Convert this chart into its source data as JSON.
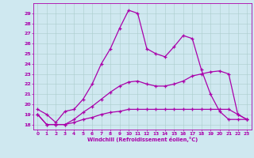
{
  "xlabel": "Windchill (Refroidissement éolien,°C)",
  "background_color": "#cfe8f0",
  "grid_color": "#aacccc",
  "line_color": "#aa00aa",
  "xlim": [
    -0.5,
    23.5
  ],
  "ylim": [
    17.5,
    30.0
  ],
  "yticks": [
    18,
    19,
    20,
    21,
    22,
    23,
    24,
    25,
    26,
    27,
    28,
    29
  ],
  "xticks": [
    0,
    1,
    2,
    3,
    4,
    5,
    6,
    7,
    8,
    9,
    10,
    11,
    12,
    13,
    14,
    15,
    16,
    17,
    18,
    19,
    20,
    21,
    22,
    23
  ],
  "series": [
    {
      "x": [
        0,
        1,
        2,
        3,
        4,
        5,
        6,
        7,
        8,
        9,
        10,
        11,
        12,
        13,
        14,
        15,
        16,
        17,
        18,
        19,
        20,
        21,
        22,
        23
      ],
      "y": [
        19.5,
        19.0,
        18.2,
        19.3,
        19.5,
        20.5,
        22.0,
        24.0,
        25.5,
        27.5,
        29.3,
        29.0,
        25.5,
        25.0,
        24.7,
        25.7,
        26.8,
        26.5,
        23.4,
        21.0,
        19.3,
        18.5,
        18.5,
        18.5
      ]
    },
    {
      "x": [
        0,
        1,
        2,
        3,
        4,
        5,
        6,
        7,
        8,
        9,
        10,
        11,
        12,
        13,
        14,
        15,
        16,
        17,
        18,
        19,
        20,
        21,
        22,
        23
      ],
      "y": [
        19.0,
        18.0,
        18.0,
        18.0,
        18.2,
        18.5,
        18.7,
        19.0,
        19.2,
        19.3,
        19.5,
        19.5,
        19.5,
        19.5,
        19.5,
        19.5,
        19.5,
        19.5,
        19.5,
        19.5,
        19.5,
        19.5,
        19.0,
        18.5
      ]
    },
    {
      "x": [
        0,
        1,
        2,
        3,
        4,
        5,
        6,
        7,
        8,
        9,
        10,
        11,
        12,
        13,
        14,
        15,
        16,
        17,
        18,
        19,
        20,
        21,
        22,
        23
      ],
      "y": [
        19.0,
        18.0,
        18.0,
        18.0,
        18.5,
        19.2,
        19.8,
        20.5,
        21.2,
        21.8,
        22.2,
        22.3,
        22.0,
        21.8,
        21.8,
        22.0,
        22.3,
        22.8,
        23.0,
        23.2,
        23.3,
        23.0,
        19.0,
        18.5
      ]
    }
  ]
}
